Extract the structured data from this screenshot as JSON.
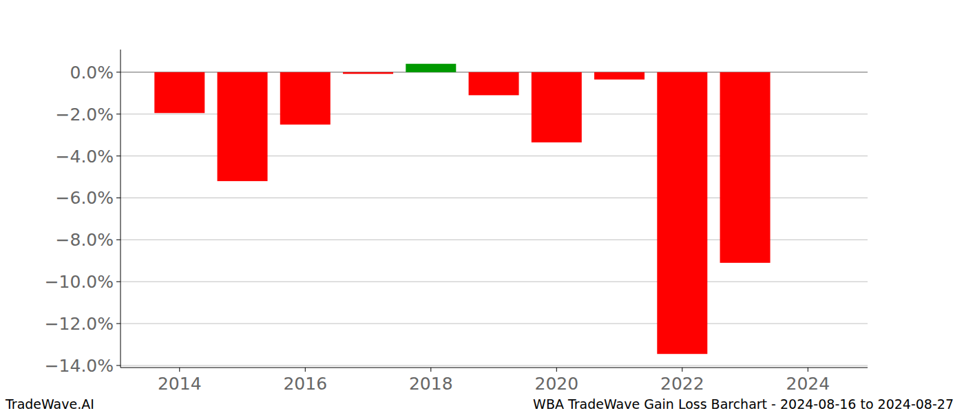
{
  "chart_data": {
    "type": "bar",
    "title": "WBA TradeWave Gain Loss Barchart - 2024-08-16 to 2024-08-27",
    "source": "TradeWave.AI",
    "x": [
      2014,
      2015,
      2016,
      2017,
      2018,
      2019,
      2020,
      2021,
      2022,
      2023
    ],
    "values": [
      -1.95,
      -5.2,
      -2.5,
      -0.08,
      0.4,
      -1.1,
      -3.35,
      -0.35,
      -13.45,
      -9.1
    ],
    "colors": [
      "#ff0000",
      "#ff0000",
      "#ff0000",
      "#ff0000",
      "#009900",
      "#ff0000",
      "#ff0000",
      "#ff0000",
      "#ff0000",
      "#ff0000"
    ],
    "xlim": [
      2013.06,
      2024.95
    ],
    "xticks": [
      2014,
      2016,
      2018,
      2020,
      2022,
      2024
    ],
    "ylim": [
      -14.1,
      1.08
    ],
    "yticks": [
      {
        "value": 0,
        "label": "0.0%"
      },
      {
        "value": -2,
        "label": "−2.0%"
      },
      {
        "value": -4,
        "label": "−4.0%"
      },
      {
        "value": -6,
        "label": "−6.0%"
      },
      {
        "value": -8,
        "label": "−8.0%"
      },
      {
        "value": -10,
        "label": "−10.0%"
      },
      {
        "value": -12,
        "label": "−12.0%"
      },
      {
        "value": -14,
        "label": "−14.0%"
      }
    ],
    "grid": true
  }
}
